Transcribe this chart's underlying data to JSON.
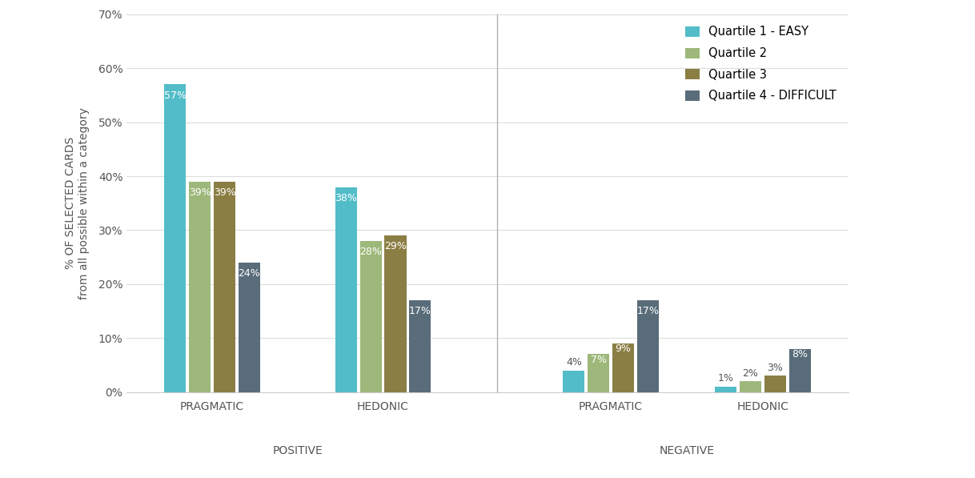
{
  "group_labels": [
    "PRAGMATIC",
    "HEDONIC",
    "PRAGMATIC",
    "HEDONIC"
  ],
  "category_labels": [
    "POSITIVE",
    "NEGATIVE"
  ],
  "quartile_values": [
    [
      57,
      39,
      39,
      24
    ],
    [
      38,
      28,
      29,
      17
    ],
    [
      4,
      7,
      9,
      17
    ],
    [
      1,
      2,
      3,
      8
    ]
  ],
  "quartile_colors": [
    "#52bdc8",
    "#9db87a",
    "#8b7e45",
    "#596c7a"
  ],
  "quartile_names": [
    "Quartile 1 - EASY",
    "Quartile 2",
    "Quartile 3",
    "Quartile 4 - DIFFICULT"
  ],
  "ylabel_line1": "% OF SELECTED CARDS",
  "ylabel_line2": "from all possible within a category",
  "ylim": [
    0,
    70
  ],
  "yticks": [
    0,
    10,
    20,
    30,
    40,
    50,
    60,
    70
  ],
  "background_color": "#ffffff",
  "bar_width": 0.13,
  "legend_fontsize": 10.5,
  "tick_fontsize": 10,
  "label_fontsize": 10,
  "category_fontsize": 10,
  "annotation_fontsize": 9
}
